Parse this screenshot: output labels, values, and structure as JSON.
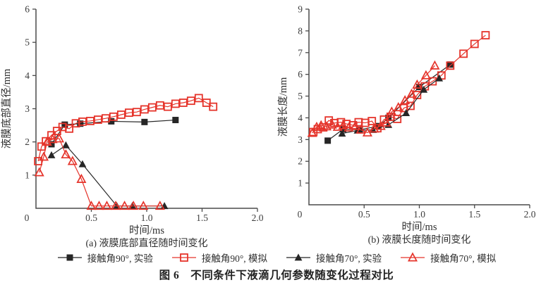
{
  "figure": {
    "caption": "图 6　不同条件下液滴几何参数随变化过程对比"
  },
  "colors": {
    "experiment": "#262626",
    "simulation": "#e5342b",
    "axis": "#4a4a4a",
    "text": "#3c3c3c"
  },
  "legend": {
    "items": [
      {
        "id": "exp90",
        "label": "接触角90°, 实验",
        "marker": "square-filled",
        "color": "#262626"
      },
      {
        "id": "sim90",
        "label": "接触角90°, 模拟",
        "marker": "square-open",
        "color": "#e5342b"
      },
      {
        "id": "exp70",
        "label": "接触角70°, 实验",
        "marker": "triangle-filled",
        "color": "#262626"
      },
      {
        "id": "sim70",
        "label": "接触角70°, 模拟",
        "marker": "triangle-open",
        "color": "#e5342b"
      }
    ]
  },
  "chart_data": [
    {
      "id": "a",
      "type": "line",
      "caption": "(a) 液膜底部直径随时间变化",
      "xlabel": "时间/ms",
      "ylabel": "液膜底部直径/mm",
      "xlim": [
        0,
        2
      ],
      "ylim": [
        0,
        6
      ],
      "grid": false,
      "legend_position": "below-figure",
      "xticks": [
        {
          "v": 0,
          "label": "0"
        },
        {
          "v": 0.5,
          "label": "0.5"
        },
        {
          "v": 1,
          "label": "1.0"
        },
        {
          "v": 1.5,
          "label": "1.5"
        },
        {
          "v": 2,
          "label": "2.0"
        }
      ],
      "yticks": [
        {
          "v": 1,
          "label": "1"
        },
        {
          "v": 2,
          "label": "2"
        },
        {
          "v": 3,
          "label": "3"
        },
        {
          "v": 4,
          "label": "4"
        },
        {
          "v": 5,
          "label": "5"
        },
        {
          "v": 6,
          "label": "6"
        }
      ],
      "series": [
        {
          "name": "接触角90°, 实验",
          "marker": "square-filled",
          "color": "#262626",
          "points": [
            [
              0.14,
              1.93
            ],
            [
              0.26,
              2.52
            ],
            [
              0.4,
              2.55
            ],
            [
              0.68,
              2.62
            ],
            [
              0.98,
              2.6
            ],
            [
              1.26,
              2.66
            ]
          ]
        },
        {
          "name": "接触角90°, 模拟",
          "marker": "square-open",
          "color": "#e5342b",
          "points": [
            [
              0.02,
              1.42
            ],
            [
              0.05,
              1.86
            ],
            [
              0.09,
              2.02
            ],
            [
              0.14,
              2.2
            ],
            [
              0.19,
              2.33
            ],
            [
              0.24,
              2.45
            ],
            [
              0.3,
              2.4
            ],
            [
              0.36,
              2.56
            ],
            [
              0.42,
              2.61
            ],
            [
              0.49,
              2.63
            ],
            [
              0.56,
              2.67
            ],
            [
              0.63,
              2.71
            ],
            [
              0.7,
              2.76
            ],
            [
              0.77,
              2.82
            ],
            [
              0.84,
              2.88
            ],
            [
              0.91,
              2.9
            ],
            [
              0.98,
              2.98
            ],
            [
              1.05,
              3.04
            ],
            [
              1.12,
              3.1
            ],
            [
              1.19,
              3.06
            ],
            [
              1.26,
              3.15
            ],
            [
              1.33,
              3.18
            ],
            [
              1.4,
              3.24
            ],
            [
              1.47,
              3.32
            ],
            [
              1.54,
              3.18
            ],
            [
              1.6,
              3.06
            ]
          ]
        },
        {
          "name": "接触角70°, 实验",
          "marker": "triangle-filled",
          "color": "#262626",
          "points": [
            [
              0.14,
              1.6
            ],
            [
              0.27,
              1.9
            ],
            [
              0.42,
              1.33
            ],
            [
              0.73,
              0.07
            ],
            [
              0.87,
              0.07
            ],
            [
              1.16,
              0.07
            ]
          ]
        },
        {
          "name": "接触角70°, 模拟",
          "marker": "triangle-open",
          "color": "#e5342b",
          "points": [
            [
              0.03,
              1.08
            ],
            [
              0.07,
              1.55
            ],
            [
              0.1,
              2.0
            ],
            [
              0.15,
              2.08
            ],
            [
              0.21,
              2.1
            ],
            [
              0.27,
              1.62
            ],
            [
              0.33,
              1.42
            ],
            [
              0.41,
              0.88
            ],
            [
              0.5,
              0.07
            ],
            [
              0.57,
              0.07
            ],
            [
              0.64,
              0.07
            ],
            [
              0.72,
              0.07
            ],
            [
              0.8,
              0.07
            ],
            [
              0.88,
              0.07
            ],
            [
              0.97,
              0.07
            ],
            [
              1.12,
              0.07
            ]
          ]
        }
      ]
    },
    {
      "id": "b",
      "type": "line",
      "caption": "(b) 液膜长度随时间变化",
      "xlabel": "时间/ms",
      "ylabel": "液膜长度/mm",
      "xlim": [
        0,
        2
      ],
      "ylim": [
        0,
        9
      ],
      "grid": false,
      "legend_position": "below-figure",
      "xticks": [
        {
          "v": 0,
          "label": "0"
        },
        {
          "v": 0.5,
          "label": "0.5"
        },
        {
          "v": 1,
          "label": "1.0"
        },
        {
          "v": 1.5,
          "label": "1.5"
        },
        {
          "v": 2,
          "label": "2.0"
        }
      ],
      "yticks": [
        {
          "v": 1,
          "label": "1"
        },
        {
          "v": 2,
          "label": "2"
        },
        {
          "v": 3,
          "label": "3"
        },
        {
          "v": 4,
          "label": "4"
        },
        {
          "v": 5,
          "label": "5"
        },
        {
          "v": 6,
          "label": "6"
        },
        {
          "v": 7,
          "label": "7"
        },
        {
          "v": 8,
          "label": "8"
        },
        {
          "v": 9,
          "label": "9"
        }
      ],
      "series": [
        {
          "name": "接触角90°, 实验",
          "marker": "square-filled",
          "color": "#262626",
          "points": [
            [
              0.17,
              2.95
            ],
            [
              0.31,
              3.48
            ],
            [
              0.46,
              3.45
            ],
            [
              0.63,
              3.62
            ],
            [
              0.72,
              4.0
            ],
            [
              1.0,
              5.42
            ],
            [
              1.28,
              6.45
            ]
          ]
        },
        {
          "name": "接触角90°, 模拟",
          "marker": "square-open",
          "color": "#e5342b",
          "points": [
            [
              0.04,
              3.35
            ],
            [
              0.08,
              3.48
            ],
            [
              0.13,
              3.56
            ],
            [
              0.18,
              3.88
            ],
            [
              0.23,
              3.76
            ],
            [
              0.29,
              3.8
            ],
            [
              0.34,
              3.72
            ],
            [
              0.4,
              3.66
            ],
            [
              0.45,
              3.8
            ],
            [
              0.51,
              3.77
            ],
            [
              0.57,
              3.85
            ],
            [
              0.62,
              3.52
            ],
            [
              0.68,
              3.92
            ],
            [
              0.74,
              4.05
            ],
            [
              0.8,
              3.95
            ],
            [
              0.86,
              4.45
            ],
            [
              0.92,
              4.55
            ],
            [
              0.98,
              5.05
            ],
            [
              1.05,
              5.45
            ],
            [
              1.12,
              5.68
            ],
            [
              1.2,
              5.95
            ],
            [
              1.28,
              6.4
            ],
            [
              1.4,
              6.95
            ],
            [
              1.5,
              7.4
            ],
            [
              1.6,
              7.8
            ]
          ]
        },
        {
          "name": "接触角70°, 实验",
          "marker": "triangle-filled",
          "color": "#262626",
          "points": [
            [
              0.3,
              3.28
            ],
            [
              0.44,
              3.42
            ],
            [
              0.58,
              3.45
            ],
            [
              0.72,
              3.68
            ],
            [
              0.88,
              4.22
            ],
            [
              1.04,
              5.3
            ],
            [
              1.18,
              5.82
            ]
          ]
        },
        {
          "name": "接触角70°, 模拟",
          "marker": "triangle-open",
          "color": "#e5342b",
          "points": [
            [
              0.03,
              3.3
            ],
            [
              0.07,
              3.58
            ],
            [
              0.11,
              3.65
            ],
            [
              0.16,
              3.6
            ],
            [
              0.21,
              3.68
            ],
            [
              0.26,
              3.58
            ],
            [
              0.31,
              3.65
            ],
            [
              0.36,
              3.55
            ],
            [
              0.42,
              3.62
            ],
            [
              0.47,
              3.45
            ],
            [
              0.53,
              3.32
            ],
            [
              0.59,
              3.5
            ],
            [
              0.65,
              3.62
            ],
            [
              0.7,
              3.78
            ],
            [
              0.75,
              4.28
            ],
            [
              0.81,
              4.48
            ],
            [
              0.87,
              4.8
            ],
            [
              0.93,
              5.1
            ],
            [
              0.98,
              5.52
            ],
            [
              1.06,
              5.95
            ],
            [
              1.14,
              6.4
            ]
          ]
        }
      ]
    }
  ]
}
